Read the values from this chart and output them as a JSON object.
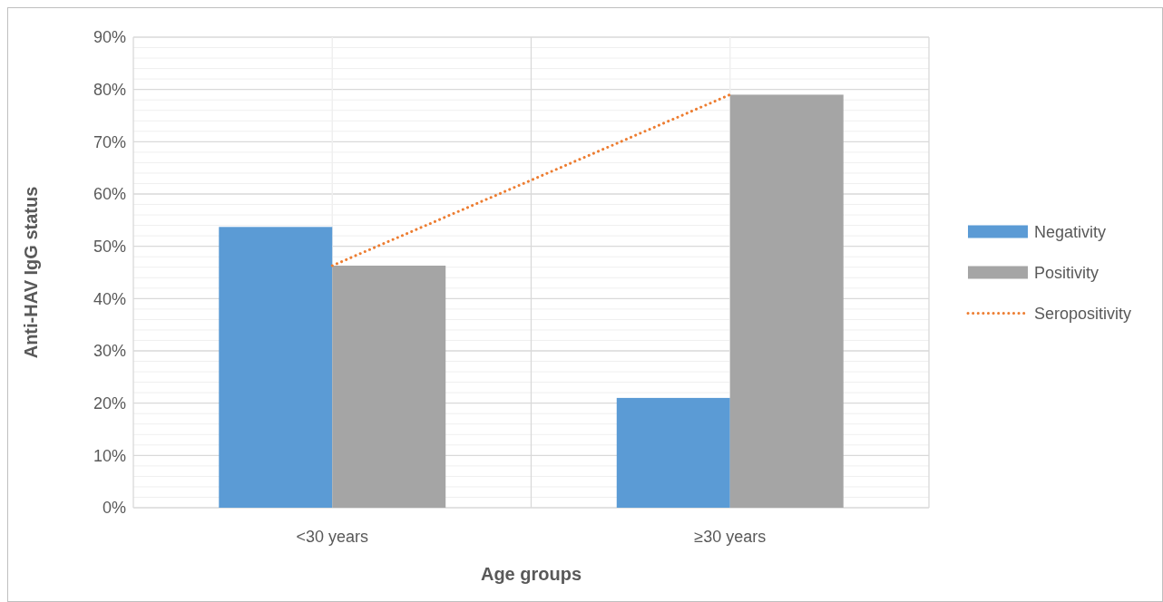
{
  "chart_data": {
    "type": "bar",
    "xlabel": "Age groups",
    "ylabel": "Anti-HAV IgG status",
    "categories": [
      "<30 years",
      "≥30 years"
    ],
    "series": [
      {
        "name": "Negativity",
        "color": "#5b9bd5",
        "values": [
          53.7,
          21.0
        ]
      },
      {
        "name": "Positivity",
        "color": "#a5a5a5",
        "values": [
          46.3,
          79.0
        ]
      },
      {
        "name": "Seropositivity",
        "type": "line",
        "color": "#ed7d31",
        "line_style": "dotted",
        "values": [
          46.3,
          79.0
        ]
      }
    ],
    "ylim": [
      0,
      90
    ],
    "yticks": [
      {
        "value": 0,
        "label": "0%"
      },
      {
        "value": 10,
        "label": "10%"
      },
      {
        "value": 20,
        "label": "20%"
      },
      {
        "value": 30,
        "label": "30%"
      },
      {
        "value": 40,
        "label": "40%"
      },
      {
        "value": 50,
        "label": "50%"
      },
      {
        "value": 60,
        "label": "60%"
      },
      {
        "value": 70,
        "label": "70%"
      },
      {
        "value": 80,
        "label": "80%"
      },
      {
        "value": 90,
        "label": "90%"
      }
    ],
    "grid": true,
    "legend": "right"
  }
}
